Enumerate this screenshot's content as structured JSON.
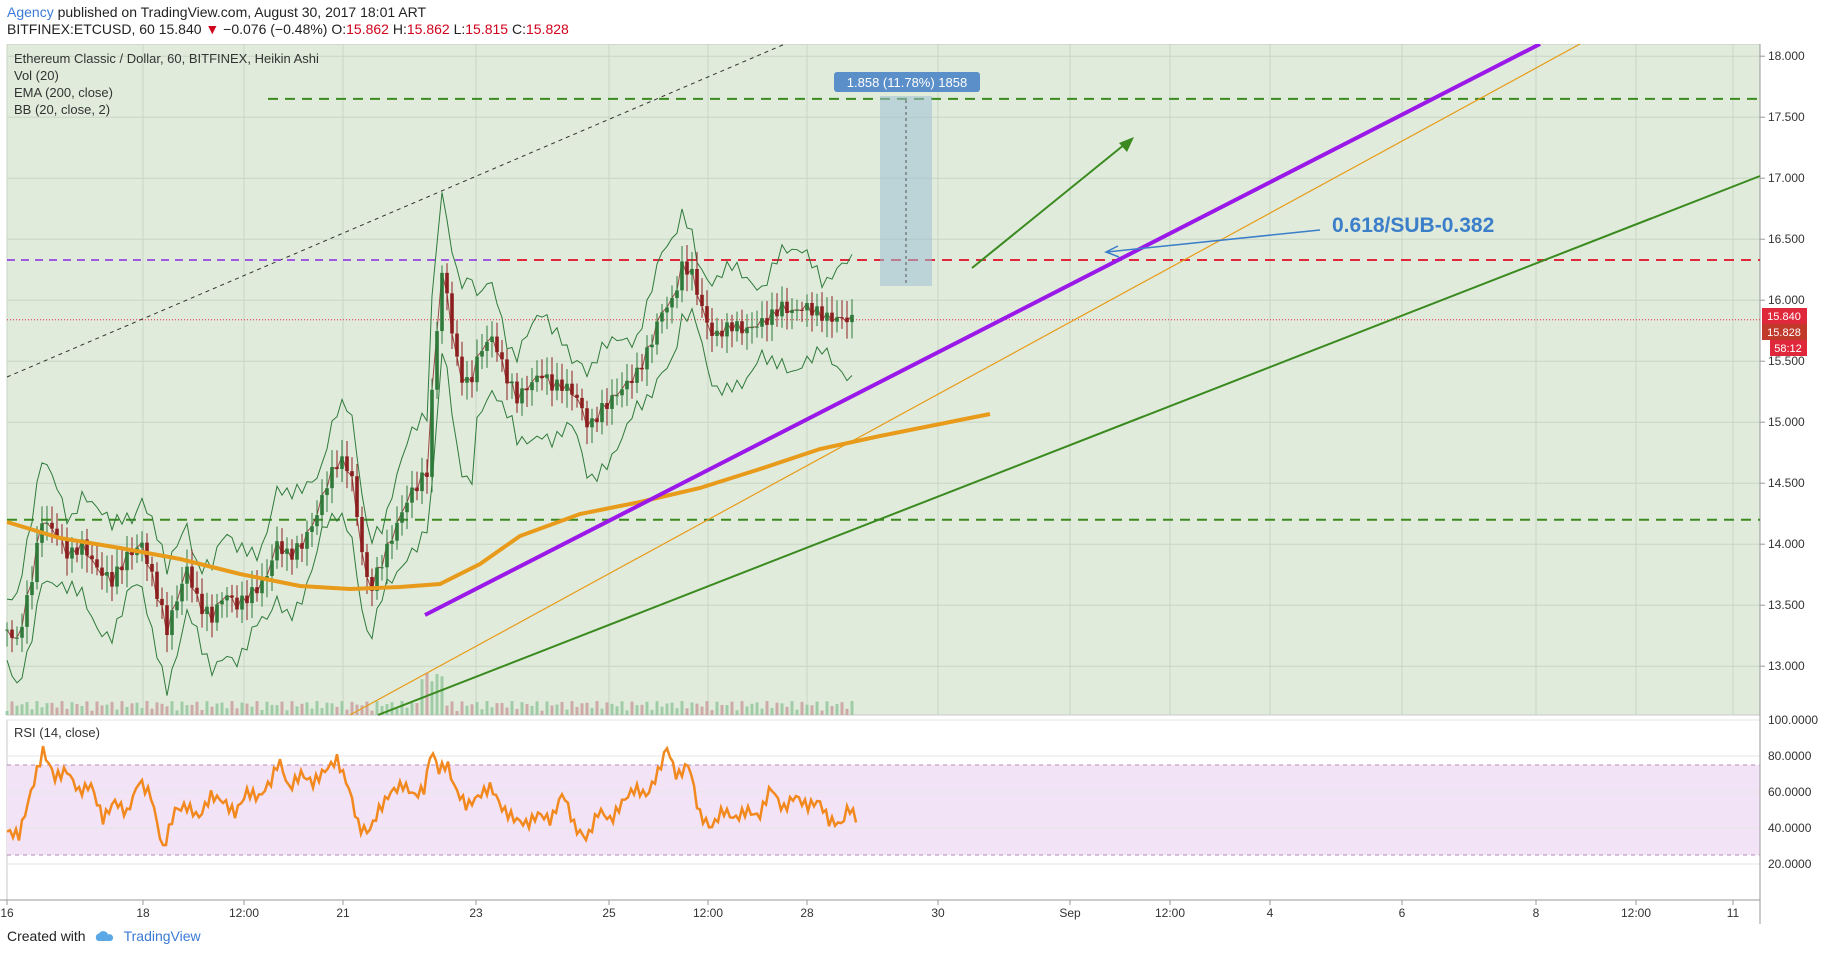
{
  "header": {
    "author": "Agency",
    "published": "published on TradingView.com, August 30, 2017 18:01 ART",
    "symbol": "BITFINEX:ETCUSD, 60",
    "last": "15.840",
    "change_arrow": "▼",
    "change": "−0.076 (−0.48%)",
    "o_label": "O:",
    "o": "15.862",
    "h_label": "H:",
    "h": "15.862",
    "l_label": "L:",
    "l": "15.815",
    "c_label": "C:",
    "c": "15.828"
  },
  "legend": {
    "title": "Ethereum Classic / Dollar, 60, BITFINEX, Heikin Ashi",
    "vol": "Vol (20)",
    "ema": "EMA (200, close)",
    "bb": "BB (20, close, 2)",
    "rsi": "RSI (14, close)"
  },
  "measure_label": "1.858 (11.78%) 1858",
  "annotation": "0.618/SUB-0.382",
  "price_tags": {
    "last": "15.840",
    "close": "15.828",
    "countdown": "58:12"
  },
  "footer": {
    "created": "Created with",
    "brand": "TradingView"
  },
  "colors": {
    "bg_price": "#e0ebdb",
    "bg_rsi": "#f3e3f7",
    "purple_trend": "#9b19e8",
    "orange_ema": "#e89b1a",
    "green_line": "#3a8a1f",
    "red_dash": "#e0283c",
    "rsi_line": "#f2891f",
    "candle_up": "#2f7a3b",
    "candle_down": "#8b1f1f"
  },
  "chart_data": {
    "type": "candlestick",
    "title": "Ethereum Classic / Dollar, 60, BITFINEX, Heikin Ashi",
    "price_axis": {
      "ticks": [
        "18.000",
        "17.500",
        "17.000",
        "16.500",
        "16.000",
        "15.500",
        "15.000",
        "14.500",
        "14.000",
        "13.500",
        "13.000"
      ],
      "ylim": [
        12.6,
        18.1
      ]
    },
    "time_axis": {
      "ticks": [
        "16",
        "18",
        "12:00",
        "21",
        "23",
        "25",
        "12:00",
        "28",
        "30",
        "Sep",
        "12:00",
        "4",
        "6",
        "8",
        "12:00",
        "11"
      ]
    },
    "rsi_axis": {
      "ticks": [
        "100.0000",
        "80.0000",
        "60.0000",
        "40.0000",
        "20.0000"
      ],
      "ylim": [
        0,
        100
      ],
      "band": [
        25,
        75
      ]
    },
    "levels": {
      "upper_green_dashed": 17.65,
      "red_dashed": 16.33,
      "lower_green_dashed": 14.2,
      "last_price_dotted": 15.84
    },
    "price_path": [
      [
        0,
        13.3
      ],
      [
        10,
        13.2
      ],
      [
        22,
        13.6
      ],
      [
        35,
        14.2
      ],
      [
        48,
        14.1
      ],
      [
        62,
        13.9
      ],
      [
        75,
        14.0
      ],
      [
        90,
        13.8
      ],
      [
        105,
        13.7
      ],
      [
        120,
        13.9
      ],
      [
        135,
        14.0
      ],
      [
        150,
        13.6
      ],
      [
        160,
        13.3
      ],
      [
        168,
        13.5
      ],
      [
        180,
        13.8
      ],
      [
        192,
        13.5
      ],
      [
        205,
        13.4
      ],
      [
        218,
        13.6
      ],
      [
        230,
        13.5
      ],
      [
        245,
        13.6
      ],
      [
        258,
        13.7
      ],
      [
        270,
        14.0
      ],
      [
        282,
        13.9
      ],
      [
        295,
        14.0
      ],
      [
        308,
        14.2
      ],
      [
        320,
        14.5
      ],
      [
        332,
        14.7
      ],
      [
        344,
        14.6
      ],
      [
        352,
        14.1
      ],
      [
        362,
        13.6
      ],
      [
        372,
        13.8
      ],
      [
        382,
        14.0
      ],
      [
        392,
        14.2
      ],
      [
        402,
        14.4
      ],
      [
        412,
        14.5
      ],
      [
        420,
        14.6
      ],
      [
        428,
        15.6
      ],
      [
        436,
        16.3
      ],
      [
        444,
        15.8
      ],
      [
        452,
        15.4
      ],
      [
        462,
        15.3
      ],
      [
        474,
        15.6
      ],
      [
        486,
        15.7
      ],
      [
        498,
        15.4
      ],
      [
        510,
        15.2
      ],
      [
        522,
        15.3
      ],
      [
        534,
        15.4
      ],
      [
        546,
        15.3
      ],
      [
        558,
        15.3
      ],
      [
        570,
        15.2
      ],
      [
        582,
        14.95
      ],
      [
        594,
        15.1
      ],
      [
        606,
        15.2
      ],
      [
        618,
        15.3
      ],
      [
        630,
        15.4
      ],
      [
        642,
        15.6
      ],
      [
        654,
        15.9
      ],
      [
        666,
        16.0
      ],
      [
        676,
        16.3
      ],
      [
        686,
        16.2
      ],
      [
        696,
        15.9
      ],
      [
        706,
        15.7
      ],
      [
        716,
        15.75
      ],
      [
        726,
        15.8
      ],
      [
        738,
        15.75
      ],
      [
        750,
        15.8
      ],
      [
        762,
        15.85
      ],
      [
        774,
        15.95
      ],
      [
        786,
        15.9
      ],
      [
        798,
        15.95
      ],
      [
        810,
        15.9
      ],
      [
        822,
        15.85
      ],
      [
        834,
        15.85
      ],
      [
        846,
        15.84
      ]
    ],
    "rsi_path": [
      [
        0,
        38
      ],
      [
        12,
        36
      ],
      [
        24,
        60
      ],
      [
        36,
        83
      ],
      [
        48,
        68
      ],
      [
        60,
        72
      ],
      [
        72,
        60
      ],
      [
        84,
        64
      ],
      [
        96,
        45
      ],
      [
        108,
        55
      ],
      [
        120,
        48
      ],
      [
        132,
        66
      ],
      [
        144,
        58
      ],
      [
        156,
        28
      ],
      [
        168,
        50
      ],
      [
        180,
        52
      ],
      [
        192,
        46
      ],
      [
        204,
        58
      ],
      [
        216,
        55
      ],
      [
        228,
        48
      ],
      [
        240,
        60
      ],
      [
        252,
        57
      ],
      [
        264,
        66
      ],
      [
        272,
        78
      ],
      [
        282,
        62
      ],
      [
        294,
        70
      ],
      [
        306,
        65
      ],
      [
        318,
        72
      ],
      [
        330,
        78
      ],
      [
        342,
        62
      ],
      [
        352,
        40
      ],
      [
        362,
        38
      ],
      [
        372,
        50
      ],
      [
        384,
        60
      ],
      [
        396,
        64
      ],
      [
        408,
        58
      ],
      [
        418,
        62
      ],
      [
        424,
        84
      ],
      [
        432,
        72
      ],
      [
        440,
        76
      ],
      [
        448,
        62
      ],
      [
        460,
        52
      ],
      [
        472,
        58
      ],
      [
        484,
        63
      ],
      [
        496,
        50
      ],
      [
        508,
        45
      ],
      [
        520,
        42
      ],
      [
        532,
        48
      ],
      [
        544,
        44
      ],
      [
        556,
        60
      ],
      [
        568,
        40
      ],
      [
        580,
        34
      ],
      [
        592,
        50
      ],
      [
        604,
        44
      ],
      [
        616,
        55
      ],
      [
        628,
        62
      ],
      [
        640,
        58
      ],
      [
        652,
        72
      ],
      [
        660,
        85
      ],
      [
        670,
        68
      ],
      [
        682,
        76
      ],
      [
        692,
        48
      ],
      [
        704,
        40
      ],
      [
        716,
        50
      ],
      [
        728,
        45
      ],
      [
        740,
        50
      ],
      [
        752,
        46
      ],
      [
        764,
        63
      ],
      [
        776,
        50
      ],
      [
        788,
        58
      ],
      [
        800,
        52
      ],
      [
        812,
        55
      ],
      [
        822,
        44
      ],
      [
        834,
        42
      ],
      [
        842,
        52
      ],
      [
        850,
        44
      ]
    ]
  }
}
